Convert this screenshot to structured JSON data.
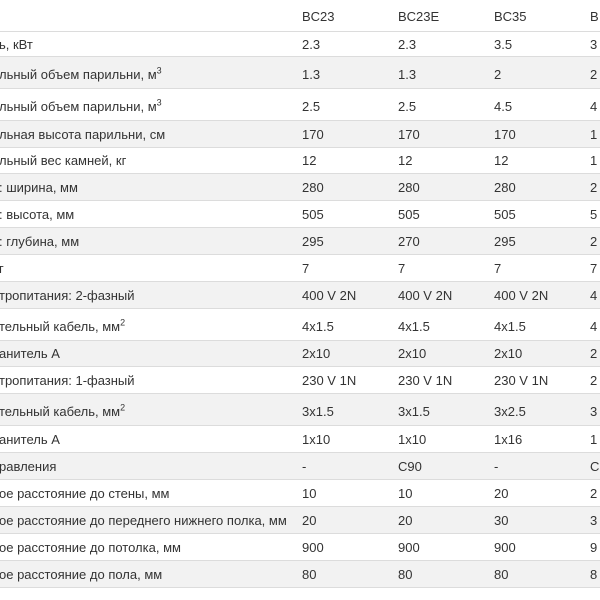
{
  "columns": [
    "BC23",
    "BC23E",
    "BC35",
    "B"
  ],
  "rows": [
    {
      "label": "ь, кВт",
      "sup": "",
      "values": [
        "2.3",
        "2.3",
        "3.5",
        "3"
      ]
    },
    {
      "label": "льный объем парильни, м",
      "sup": "3",
      "values": [
        "1.3",
        "1.3",
        "2",
        "2"
      ]
    },
    {
      "label": "льный объем парильни, м",
      "sup": "3",
      "values": [
        "2.5",
        "2.5",
        "4.5",
        "4"
      ]
    },
    {
      "label": "льная высота парильни, см",
      "sup": "",
      "values": [
        "170",
        "170",
        "170",
        "1"
      ]
    },
    {
      "label": "льный вес камней, кг",
      "sup": "",
      "values": [
        "12",
        "12",
        "12",
        "1"
      ]
    },
    {
      "label": ": ширина, мм",
      "sup": "",
      "values": [
        "280",
        "280",
        "280",
        "2"
      ]
    },
    {
      "label": ": высота, мм",
      "sup": "",
      "values": [
        "505",
        "505",
        "505",
        "5"
      ]
    },
    {
      "label": ": глубина, мм",
      "sup": "",
      "values": [
        "295",
        "270",
        "295",
        "2"
      ]
    },
    {
      "label": "г",
      "sup": "",
      "values": [
        "7",
        "7",
        "7",
        "7"
      ]
    },
    {
      "label": "тропитания: 2-фазный",
      "sup": "",
      "values": [
        "400 V 2N",
        "400 V 2N",
        "400 V 2N",
        "4"
      ]
    },
    {
      "label": "тельный кабель, мм",
      "sup": "2",
      "values": [
        "4x1.5",
        "4x1.5",
        "4x1.5",
        "4"
      ]
    },
    {
      "label": "анитель А",
      "sup": "",
      "values": [
        "2x10",
        "2x10",
        "2x10",
        "2"
      ]
    },
    {
      "label": "тропитания: 1-фазный",
      "sup": "",
      "values": [
        "230 V 1N",
        "230 V 1N",
        "230 V 1N",
        "2"
      ]
    },
    {
      "label": "тельный кабель, мм",
      "sup": "2",
      "values": [
        "3x1.5",
        "3x1.5",
        "3x2.5",
        "3"
      ]
    },
    {
      "label": "анитель А",
      "sup": "",
      "values": [
        "1x10",
        "1x10",
        "1x16",
        "1"
      ]
    },
    {
      "label": "равления",
      "sup": "",
      "values": [
        "-",
        "C90",
        "-",
        "C"
      ]
    },
    {
      "label": "ое расстояние до стены, мм",
      "sup": "",
      "values": [
        "10",
        "10",
        "20",
        "2"
      ]
    },
    {
      "label": "ое расстояние до переднего нижнего полка, мм",
      "sup": "",
      "values": [
        "20",
        "20",
        "30",
        "3"
      ]
    },
    {
      "label": "ое расстояние до потолка, мм",
      "sup": "",
      "values": [
        "900",
        "900",
        "900",
        "9"
      ]
    },
    {
      "label": "ое расстояние до пола, мм",
      "sup": "",
      "values": [
        "80",
        "80",
        "80",
        "8"
      ]
    }
  ]
}
